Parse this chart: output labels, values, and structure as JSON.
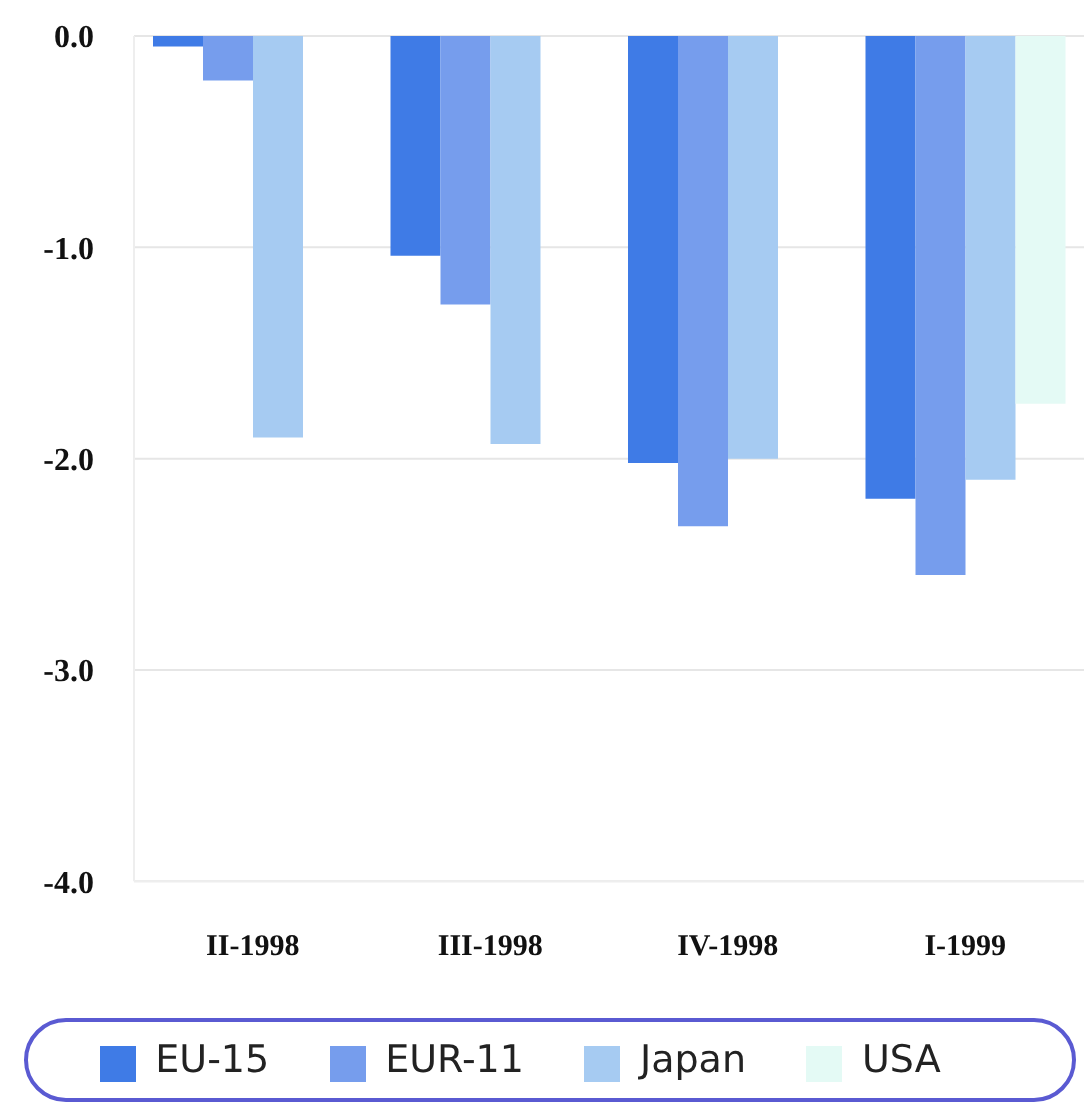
{
  "chart_data": {
    "type": "bar",
    "categories": [
      "II-1998",
      "III-1998",
      "IV-1998",
      "I-1999"
    ],
    "series": [
      {
        "name": "EU-15",
        "color": "#3f7be6",
        "values": [
          -0.05,
          -1.04,
          -2.02,
          -2.19
        ]
      },
      {
        "name": "EUR-11",
        "color": "#769ded",
        "values": [
          -0.21,
          -1.27,
          -2.32,
          -2.55
        ]
      },
      {
        "name": "Japan",
        "color": "#a6cbf2",
        "values": [
          -1.9,
          -1.93,
          -2.0,
          -2.1
        ]
      },
      {
        "name": "USA",
        "color": "#e4faf5",
        "values": [
          null,
          null,
          null,
          -1.74
        ]
      }
    ],
    "ylim": [
      -4,
      0
    ],
    "yticks": [
      {
        "value": 0,
        "label": "0.0"
      },
      {
        "value": -1,
        "label": "-1.0"
      },
      {
        "value": -2,
        "label": "-2.0"
      },
      {
        "value": -3,
        "label": "-3.0"
      },
      {
        "value": -4,
        "label": "-4.0"
      }
    ],
    "grid": "y",
    "legend": "bottom"
  }
}
